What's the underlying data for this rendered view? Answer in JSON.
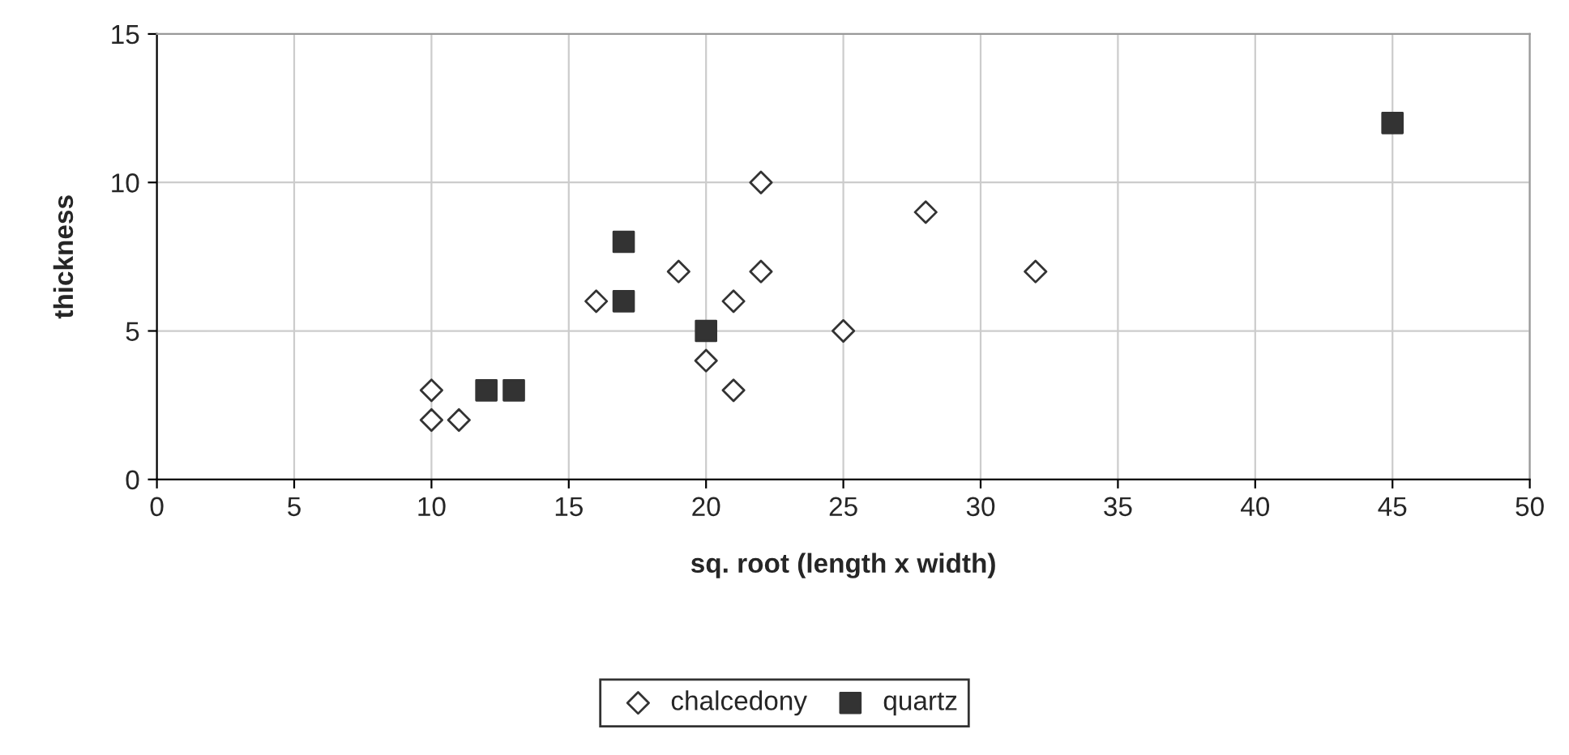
{
  "chart_data": {
    "type": "scatter",
    "xlabel": "sq. root (length x width)",
    "ylabel": "thickness",
    "xlim": [
      0,
      50
    ],
    "xticks": [
      0,
      5,
      10,
      15,
      20,
      25,
      30,
      35,
      40,
      45,
      50
    ],
    "ylim": [
      0,
      15
    ],
    "yticks": [
      0,
      5,
      10,
      15
    ],
    "grid": true,
    "legend": "bottom",
    "series": [
      {
        "name": "chalcedony",
        "color": "#ffffff",
        "marker": "diamond",
        "x": [
          10,
          10,
          11,
          16,
          19,
          20,
          21,
          21,
          22,
          22,
          25,
          28,
          32
        ],
        "values": [
          3,
          2,
          2,
          6,
          7,
          4,
          6,
          3,
          10,
          7,
          5,
          9,
          7
        ]
      },
      {
        "name": "quartz",
        "color": "#333333",
        "marker": "square",
        "x": [
          12,
          13,
          17,
          17,
          20,
          45
        ],
        "values": [
          3,
          3,
          8,
          6,
          5,
          12
        ]
      }
    ]
  }
}
